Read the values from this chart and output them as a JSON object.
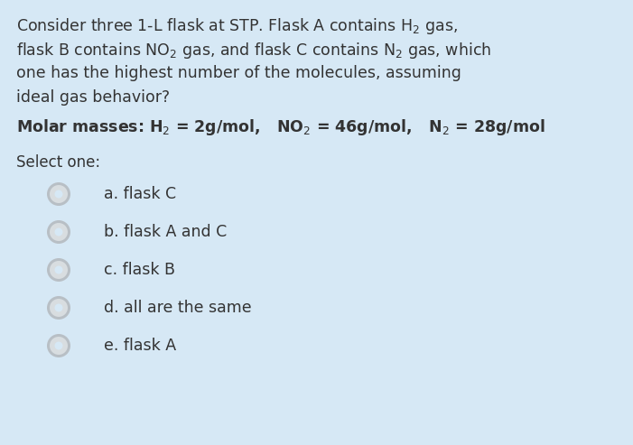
{
  "background_color": "#d6e8f5",
  "text_color": "#333333",
  "question_lines": [
    "Consider three 1-L flask at STP. Flask A contains H$_2$ gas,",
    "flask B contains NO$_2$ gas, and flask C contains N$_2$ gas, which",
    "one has the highest number of the molecules, assuming",
    "ideal gas behavior?"
  ],
  "molar_mass_line": "Molar masses: H$_2$ = 2g/mol,   NO$_2$ = 46g/mol,   N$_2$ = 28g/mol",
  "select_one": "Select one:",
  "options": [
    "a. flask C",
    "b. flask A and C",
    "c. flask B",
    "d. all are the same",
    "e. flask A"
  ],
  "question_fontsize": 12.5,
  "molar_fontsize": 12.5,
  "select_fontsize": 12.0,
  "option_fontsize": 12.5,
  "radio_outer_color": "#b8bfc5",
  "radio_inner_color": "#d8dde0",
  "radio_bg_color": "#d6e8f5"
}
